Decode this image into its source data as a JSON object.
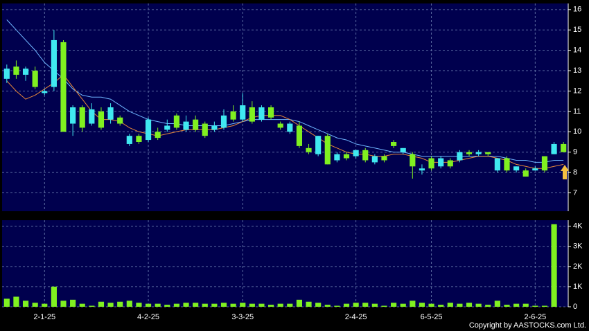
{
  "chart_data": [
    {
      "type": "candlestick",
      "up_color": "#40e8f0",
      "down_color": "#80f020",
      "background": "#00004e",
      "open": [
        12.6,
        13.2,
        12.8,
        13.0,
        11.9,
        12.2,
        14.4,
        10.4,
        11.2,
        10.4,
        11.0,
        10.6,
        10.7,
        9.4,
        9.8,
        9.6,
        10.0,
        10.1,
        10.8,
        10.1,
        10.6,
        10.4,
        10.1,
        10.2,
        11.0,
        10.6,
        11.2,
        10.6,
        11.2,
        10.4,
        10.0,
        10.3,
        9.2,
        8.9,
        9.8,
        8.6,
        8.9,
        8.8,
        9.1,
        8.5,
        8.8,
        9.5,
        9.0,
        8.9,
        8.1,
        8.7,
        8.3,
        8.6,
        8.6,
        9.0,
        8.9,
        9.0,
        8.1,
        8.7,
        8.1,
        8.1,
        8.1,
        8.8,
        8.9,
        9.4
      ],
      "high": [
        13.3,
        13.5,
        13.2,
        13.2,
        12.1,
        15.0,
        14.5,
        11.3,
        11.3,
        11.4,
        11.2,
        11.4,
        10.8,
        9.9,
        9.9,
        10.7,
        10.2,
        10.6,
        10.9,
        10.8,
        10.8,
        10.5,
        10.5,
        11.1,
        11.3,
        11.9,
        11.5,
        11.3,
        11.3,
        10.5,
        10.5,
        10.5,
        9.4,
        9.8,
        9.9,
        9.0,
        9.0,
        9.1,
        9.2,
        8.9,
        8.9,
        9.6,
        9.2,
        9.0,
        8.4,
        8.8,
        8.8,
        8.7,
        9.1,
        9.1,
        9.1,
        9.0,
        8.7,
        8.8,
        8.3,
        8.2,
        8.3,
        8.8,
        9.5,
        9.5
      ],
      "low": [
        12.4,
        12.6,
        12.5,
        12.1,
        11.8,
        12.0,
        10.0,
        9.8,
        10.0,
        10.3,
        10.1,
        10.4,
        10.3,
        9.3,
        9.4,
        9.5,
        9.6,
        10.0,
        10.1,
        10.0,
        10.0,
        9.7,
        10.0,
        10.1,
        10.5,
        10.5,
        10.4,
        10.5,
        10.6,
        10.1,
        9.9,
        9.2,
        8.9,
        8.8,
        8.4,
        8.5,
        8.6,
        8.7,
        8.5,
        8.4,
        8.5,
        9.2,
        8.9,
        7.7,
        7.9,
        8.1,
        8.2,
        8.2,
        8.5,
        8.8,
        8.8,
        8.8,
        8.0,
        8.0,
        8.0,
        7.8,
        8.1,
        8.0,
        8.9,
        9.0
      ],
      "close": [
        13.1,
        12.8,
        13.1,
        12.2,
        12.0,
        14.5,
        10.0,
        11.2,
        10.2,
        11.1,
        10.2,
        11.2,
        10.4,
        9.8,
        9.5,
        10.6,
        9.7,
        10.3,
        10.2,
        10.5,
        10.1,
        9.8,
        10.3,
        10.8,
        10.6,
        11.3,
        10.5,
        11.2,
        10.7,
        10.2,
        10.4,
        9.3,
        9.0,
        9.8,
        8.4,
        8.9,
        8.7,
        9.1,
        8.6,
        8.8,
        8.6,
        9.3,
        9.2,
        8.3,
        8.2,
        8.2,
        8.7,
        8.3,
        9.0,
        8.9,
        9.0,
        8.9,
        8.7,
        8.1,
        8.3,
        7.8,
        8.2,
        8.1,
        9.4,
        9.0
      ],
      "lines": [
        {
          "color": "#6fb6ff",
          "values": [
            15.5,
            15.0,
            14.5,
            14.0,
            13.4,
            13.0,
            12.6,
            12.1,
            11.8,
            11.7,
            11.7,
            11.6,
            11.3,
            11.0,
            10.8,
            10.6,
            10.5,
            10.4,
            10.4,
            10.3,
            10.3,
            10.3,
            10.3,
            10.3,
            10.4,
            10.5,
            10.6,
            10.6,
            10.6,
            10.6,
            10.6,
            10.5,
            10.3,
            10.1,
            9.9,
            9.7,
            9.6,
            9.4,
            9.3,
            9.2,
            9.1,
            9.0,
            9.0,
            8.9,
            8.8,
            8.8,
            8.8,
            8.8,
            8.8,
            8.8,
            8.8,
            8.8,
            8.8,
            8.7,
            8.6,
            8.6,
            8.5,
            8.5,
            8.6,
            8.6
          ]
        },
        {
          "color": "#e8883a",
          "values": [
            12.5,
            12.0,
            11.6,
            11.8,
            12.1,
            12.4,
            12.8,
            12.2,
            11.6,
            11.0,
            10.6,
            10.6,
            10.5,
            10.2,
            10.0,
            9.9,
            9.8,
            9.9,
            10.0,
            10.1,
            10.1,
            10.1,
            10.1,
            10.2,
            10.3,
            10.5,
            10.7,
            10.8,
            10.8,
            10.8,
            10.6,
            10.3,
            10.0,
            9.7,
            9.4,
            9.2,
            9.0,
            8.9,
            8.9,
            8.8,
            8.8,
            8.9,
            8.9,
            8.8,
            8.7,
            8.5,
            8.5,
            8.5,
            8.6,
            8.7,
            8.8,
            8.8,
            8.7,
            8.6,
            8.4,
            8.3,
            8.2,
            8.2,
            8.3,
            8.4
          ]
        }
      ],
      "ylim": [
        6.1,
        16.3
      ],
      "yticks": [
        7,
        8,
        9,
        10,
        11,
        12,
        13,
        14,
        15,
        16
      ],
      "grid": true
    },
    {
      "type": "bar",
      "color": "#80f020",
      "background": "#00004e",
      "categories": [
        null,
        null,
        null,
        null,
        "2-1-25",
        null,
        null,
        null,
        null,
        null,
        null,
        null,
        null,
        null,
        null,
        "4-2-25",
        null,
        null,
        null,
        null,
        null,
        null,
        null,
        null,
        null,
        "3-3-25",
        null,
        null,
        null,
        null,
        null,
        null,
        null,
        null,
        null,
        null,
        null,
        "2-4-25",
        null,
        null,
        null,
        null,
        null,
        null,
        null,
        "6-5-25",
        null,
        null,
        null,
        null,
        null,
        null,
        null,
        null,
        null,
        null,
        "2-6-25",
        null,
        null,
        null
      ],
      "values": [
        400,
        500,
        300,
        200,
        150,
        1000,
        300,
        350,
        150,
        50,
        250,
        200,
        250,
        300,
        200,
        150,
        150,
        100,
        150,
        200,
        200,
        150,
        150,
        200,
        150,
        200,
        150,
        150,
        100,
        150,
        150,
        350,
        250,
        200,
        100,
        50,
        150,
        200,
        200,
        150,
        50,
        200,
        150,
        300,
        200,
        150,
        100,
        200,
        150,
        200,
        150,
        100,
        300,
        100,
        150,
        150,
        50,
        50,
        4100,
        0
      ],
      "ylim": [
        0,
        4300
      ],
      "yticks": [
        0,
        {
          "value": 1000,
          "label": "1K"
        },
        {
          "value": 2000,
          "label": "2K"
        },
        {
          "value": 3000,
          "label": "3K"
        },
        {
          "value": 4000,
          "label": "4K"
        }
      ],
      "grid": true,
      "footer": "Copyright by AASTOCKS.com Ltd."
    }
  ]
}
